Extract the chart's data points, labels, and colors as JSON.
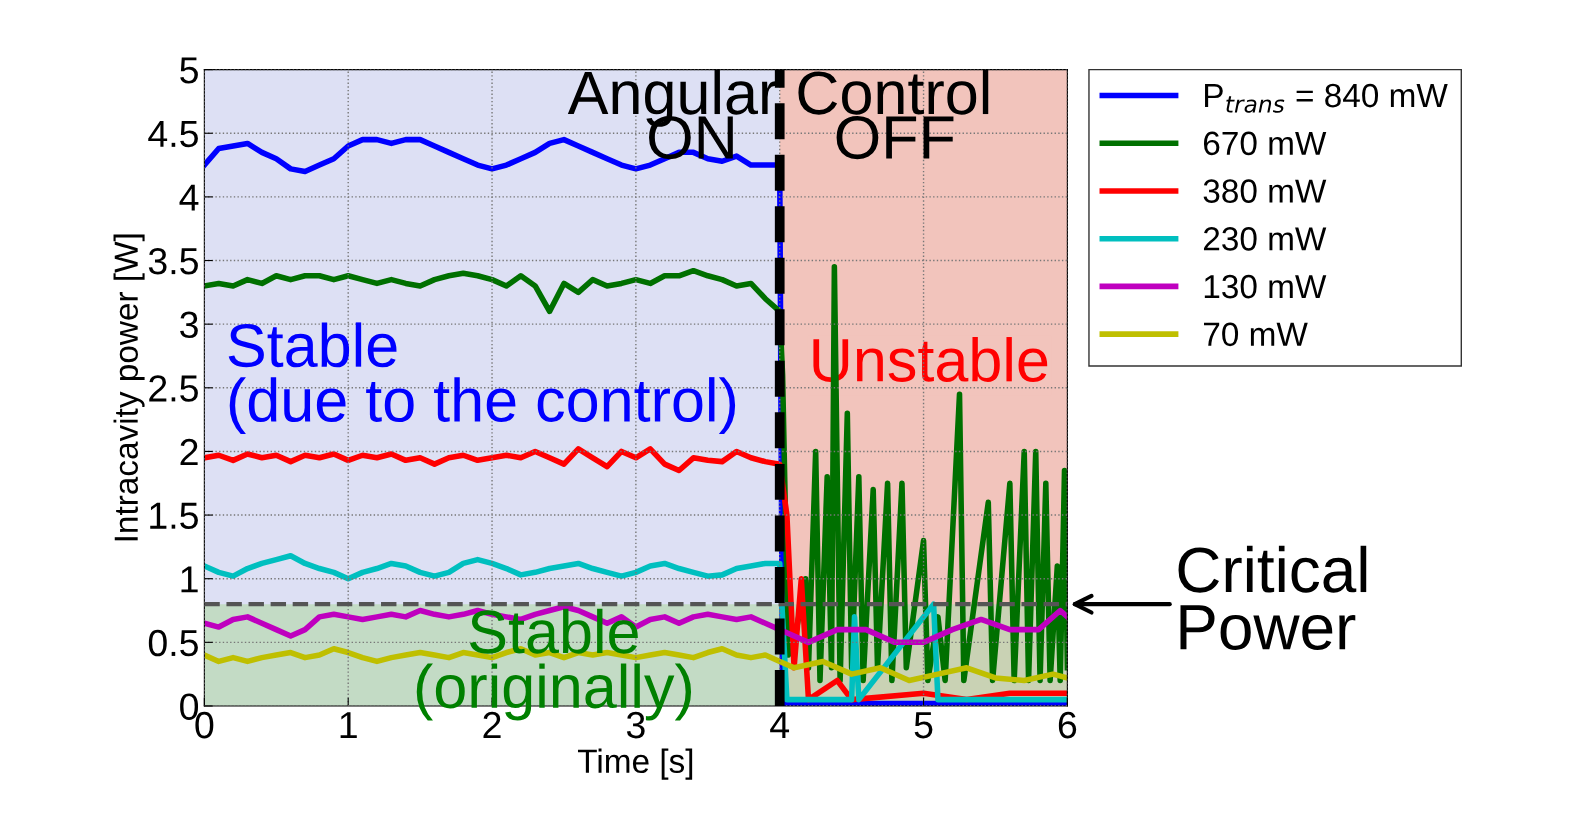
{
  "chart_data": {
    "type": "line",
    "xlabel": "Time [s]",
    "ylabel": "Intracavity power [W]",
    "xlim": [
      0,
      6
    ],
    "ylim": [
      0,
      5
    ],
    "xticks": [
      0,
      1,
      2,
      3,
      4,
      5,
      6
    ],
    "yticks": [
      0,
      0.5,
      1,
      1.5,
      2,
      2.5,
      3,
      3.5,
      4,
      4.5,
      5
    ],
    "grid": true,
    "legend": "right",
    "line_style": "solid",
    "marker": "none",
    "series": [
      {
        "name": "P$_{trans}$ = 840 mW",
        "color": "#0000ff",
        "x": [
          0,
          0.1,
          0.2,
          0.3,
          0.4,
          0.5,
          0.6,
          0.7,
          0.8,
          0.9,
          1,
          1.1,
          1.2,
          1.3,
          1.4,
          1.5,
          1.6,
          1.7,
          1.8,
          1.9,
          2,
          2.1,
          2.2,
          2.3,
          2.4,
          2.5,
          2.6,
          2.7,
          2.8,
          2.9,
          3,
          3.1,
          3.2,
          3.3,
          3.4,
          3.5,
          3.6,
          3.7,
          3.8,
          3.9,
          4,
          4.02,
          6
        ],
        "values": [
          4.25,
          4.38,
          4.4,
          4.42,
          4.35,
          4.3,
          4.22,
          4.2,
          4.25,
          4.3,
          4.4,
          4.45,
          4.45,
          4.42,
          4.45,
          4.45,
          4.4,
          4.35,
          4.3,
          4.25,
          4.22,
          4.25,
          4.3,
          4.35,
          4.42,
          4.45,
          4.4,
          4.35,
          4.3,
          4.25,
          4.22,
          4.25,
          4.3,
          4.35,
          4.35,
          4.3,
          4.28,
          4.32,
          4.25,
          4.25,
          4.25,
          0.02,
          0.02
        ]
      },
      {
        "name": "670 mW",
        "color": "#007000",
        "x": [
          0,
          0.1,
          0.2,
          0.3,
          0.4,
          0.5,
          0.6,
          0.7,
          0.8,
          0.9,
          1,
          1.1,
          1.2,
          1.3,
          1.4,
          1.5,
          1.6,
          1.7,
          1.8,
          1.9,
          2,
          2.1,
          2.2,
          2.3,
          2.4,
          2.5,
          2.6,
          2.7,
          2.8,
          2.9,
          3,
          3.1,
          3.2,
          3.3,
          3.4,
          3.5,
          3.6,
          3.7,
          3.8,
          3.9,
          4,
          4.02,
          4.06,
          4.1,
          4.18,
          4.2,
          4.25,
          4.28,
          4.33,
          4.36,
          4.38,
          4.42,
          4.47,
          4.5,
          4.55,
          4.58,
          4.65,
          4.68,
          4.75,
          4.78,
          4.85,
          4.88,
          5.0,
          5.03,
          5.1,
          5.15,
          5.25,
          5.28,
          5.45,
          5.48,
          5.6,
          5.63,
          5.7,
          5.73,
          5.78,
          5.81,
          5.85,
          5.88,
          5.93,
          5.95,
          5.98,
          6.0
        ],
        "values": [
          3.3,
          3.32,
          3.3,
          3.35,
          3.32,
          3.38,
          3.35,
          3.38,
          3.38,
          3.35,
          3.38,
          3.35,
          3.32,
          3.35,
          3.32,
          3.3,
          3.35,
          3.38,
          3.4,
          3.38,
          3.35,
          3.3,
          3.38,
          3.3,
          3.1,
          3.32,
          3.25,
          3.35,
          3.3,
          3.32,
          3.35,
          3.32,
          3.38,
          3.38,
          3.42,
          3.38,
          3.35,
          3.3,
          3.32,
          3.2,
          3.1,
          2.6,
          0.4,
          0.5,
          1.0,
          0.3,
          2.0,
          0.2,
          1.8,
          0.3,
          3.45,
          0.2,
          2.3,
          0.3,
          1.8,
          0.2,
          1.7,
          0.3,
          1.75,
          0.2,
          1.75,
          0.3,
          1.3,
          0.2,
          0.7,
          0.2,
          2.45,
          0.2,
          1.6,
          0.2,
          1.75,
          0.2,
          2.0,
          0.2,
          2.0,
          0.2,
          1.75,
          0.2,
          1.1,
          0.2,
          1.85,
          0.3
        ]
      },
      {
        "name": "380 mW",
        "color": "#ff0000",
        "x": [
          0,
          0.1,
          0.2,
          0.3,
          0.4,
          0.5,
          0.6,
          0.7,
          0.8,
          0.9,
          1,
          1.1,
          1.2,
          1.3,
          1.4,
          1.5,
          1.6,
          1.7,
          1.8,
          1.9,
          2,
          2.1,
          2.2,
          2.3,
          2.4,
          2.5,
          2.6,
          2.7,
          2.8,
          2.9,
          3,
          3.1,
          3.2,
          3.3,
          3.4,
          3.5,
          3.6,
          3.7,
          3.8,
          3.9,
          4,
          4.05,
          4.1,
          4.15,
          4.2,
          4.4,
          4.5,
          5.0,
          5.3,
          5.6,
          6
        ],
        "values": [
          1.95,
          1.97,
          1.93,
          1.98,
          1.95,
          1.97,
          1.92,
          1.97,
          1.95,
          1.98,
          1.93,
          1.97,
          1.95,
          1.98,
          1.93,
          1.95,
          1.9,
          1.95,
          1.97,
          1.93,
          1.95,
          1.97,
          1.95,
          2.0,
          1.95,
          1.9,
          2.02,
          1.95,
          1.88,
          2.0,
          1.95,
          2.02,
          1.9,
          1.85,
          1.95,
          1.93,
          1.92,
          2.0,
          1.95,
          1.92,
          1.9,
          1.5,
          0.3,
          1.0,
          0.05,
          0.2,
          0.05,
          0.1,
          0.05,
          0.1,
          0.1
        ]
      },
      {
        "name": "230 mW",
        "color": "#00bfbf",
        "x": [
          0,
          0.1,
          0.2,
          0.3,
          0.4,
          0.5,
          0.6,
          0.7,
          0.8,
          0.9,
          1,
          1.1,
          1.2,
          1.3,
          1.4,
          1.5,
          1.6,
          1.7,
          1.8,
          1.9,
          2,
          2.1,
          2.2,
          2.3,
          2.4,
          2.5,
          2.6,
          2.7,
          2.8,
          2.9,
          3,
          3.1,
          3.2,
          3.3,
          3.4,
          3.5,
          3.6,
          3.7,
          3.8,
          3.9,
          4,
          4.05,
          4.5,
          4.52,
          4.55,
          5.07,
          5.1,
          6
        ],
        "values": [
          1.1,
          1.05,
          1.02,
          1.08,
          1.12,
          1.15,
          1.18,
          1.12,
          1.08,
          1.05,
          1.0,
          1.05,
          1.08,
          1.12,
          1.1,
          1.05,
          1.02,
          1.05,
          1.12,
          1.15,
          1.12,
          1.08,
          1.03,
          1.05,
          1.08,
          1.1,
          1.12,
          1.08,
          1.05,
          1.02,
          1.05,
          1.1,
          1.12,
          1.08,
          1.05,
          1.02,
          1.03,
          1.08,
          1.1,
          1.12,
          1.12,
          0.05,
          0.05,
          0.7,
          0.05,
          0.8,
          0.05,
          0.05
        ]
      },
      {
        "name": "130 mW",
        "color": "#bf00bf",
        "x": [
          0,
          0.1,
          0.2,
          0.3,
          0.4,
          0.5,
          0.6,
          0.7,
          0.8,
          0.9,
          1,
          1.1,
          1.2,
          1.3,
          1.4,
          1.5,
          1.6,
          1.7,
          1.8,
          1.9,
          2,
          2.1,
          2.2,
          2.3,
          2.4,
          2.5,
          2.6,
          2.7,
          2.8,
          2.9,
          3,
          3.1,
          3.2,
          3.3,
          3.4,
          3.5,
          3.6,
          3.7,
          3.8,
          3.9,
          4,
          4.1,
          4.2,
          4.4,
          4.6,
          4.8,
          5.0,
          5.2,
          5.4,
          5.6,
          5.8,
          5.95,
          6
        ],
        "values": [
          0.65,
          0.62,
          0.68,
          0.7,
          0.65,
          0.6,
          0.55,
          0.6,
          0.7,
          0.72,
          0.7,
          0.68,
          0.7,
          0.72,
          0.7,
          0.75,
          0.72,
          0.7,
          0.72,
          0.75,
          0.72,
          0.7,
          0.68,
          0.72,
          0.75,
          0.78,
          0.75,
          0.7,
          0.65,
          0.7,
          0.62,
          0.68,
          0.7,
          0.65,
          0.7,
          0.72,
          0.7,
          0.68,
          0.7,
          0.65,
          0.6,
          0.55,
          0.5,
          0.6,
          0.6,
          0.5,
          0.5,
          0.6,
          0.68,
          0.6,
          0.6,
          0.75,
          0.7
        ]
      },
      {
        "name": "70 mW",
        "color": "#bfbf00",
        "x": [
          0,
          0.1,
          0.2,
          0.3,
          0.4,
          0.5,
          0.6,
          0.7,
          0.8,
          0.9,
          1,
          1.1,
          1.2,
          1.3,
          1.4,
          1.5,
          1.6,
          1.7,
          1.8,
          1.9,
          2,
          2.1,
          2.2,
          2.3,
          2.4,
          2.5,
          2.6,
          2.7,
          2.8,
          2.9,
          3,
          3.1,
          3.2,
          3.3,
          3.4,
          3.5,
          3.6,
          3.7,
          3.8,
          3.9,
          4,
          4.1,
          4.3,
          4.5,
          4.7,
          4.9,
          5.1,
          5.3,
          5.5,
          5.7,
          5.9,
          6
        ],
        "values": [
          0.4,
          0.35,
          0.38,
          0.35,
          0.38,
          0.4,
          0.42,
          0.38,
          0.4,
          0.45,
          0.42,
          0.38,
          0.35,
          0.38,
          0.4,
          0.42,
          0.4,
          0.38,
          0.42,
          0.4,
          0.38,
          0.42,
          0.45,
          0.4,
          0.42,
          0.38,
          0.42,
          0.4,
          0.42,
          0.4,
          0.38,
          0.4,
          0.42,
          0.4,
          0.38,
          0.42,
          0.45,
          0.4,
          0.38,
          0.4,
          0.35,
          0.3,
          0.35,
          0.25,
          0.3,
          0.2,
          0.25,
          0.3,
          0.22,
          0.2,
          0.25,
          0.22
        ]
      }
    ],
    "bands": [
      {
        "axis": "x",
        "from": 0,
        "to": 4,
        "color": "#dde0f4"
      },
      {
        "axis": "x",
        "from": 4,
        "to": 6,
        "color": "#f2c4bc"
      },
      {
        "axis": "y",
        "from": 0,
        "to": 0.8,
        "color": "#b8d8b0"
      }
    ],
    "ref_lines": [
      {
        "axis": "y",
        "value": 0.8,
        "color": "#555555",
        "line_style": "dashed"
      },
      {
        "axis": "x",
        "value": 4,
        "color": "#000000",
        "line_style": "dashed"
      }
    ],
    "annotations": [
      "Angular Control",
      "ON",
      "OFF",
      "Stable\n(due to the control)",
      "Unstable",
      "Stable\n(originally)",
      {
        "text": "Critical Power",
        "x": 6,
        "y": 0.8
      }
    ]
  }
}
